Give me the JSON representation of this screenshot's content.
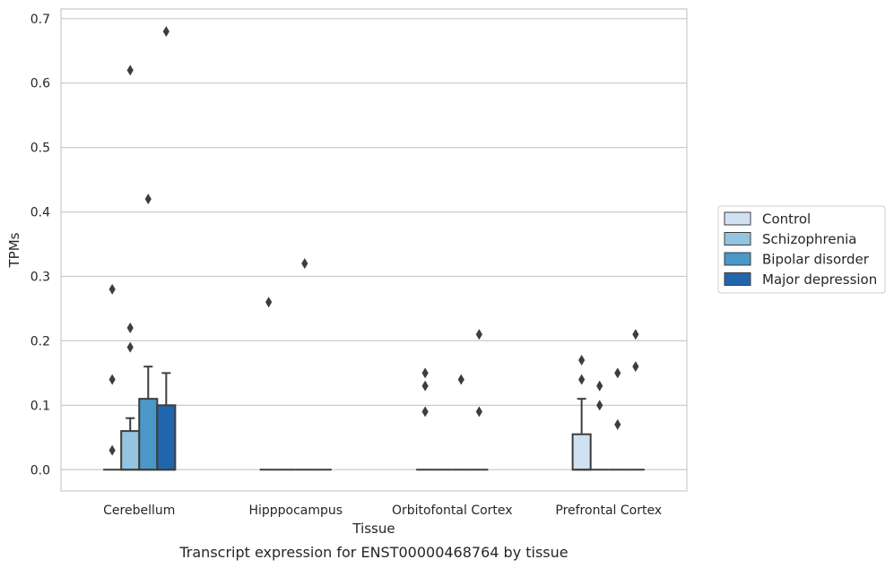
{
  "chart_data": {
    "type": "box",
    "title": "",
    "caption": "Transcript expression for ENST00000468764 by tissue",
    "xlabel": "Tissue",
    "ylabel": "TPMs",
    "ylim": [
      -0.033,
      0.715
    ],
    "yticks": [
      "0.0",
      "0.1",
      "0.2",
      "0.3",
      "0.4",
      "0.5",
      "0.6",
      "0.7"
    ],
    "grid": "horizontal",
    "legend_position": "right",
    "categories": [
      "Cerebellum",
      "Hipppocampus",
      "Orbitofontal Cortex",
      "Prefrontal Cortex"
    ],
    "series": [
      {
        "name": "Control",
        "color": "#d0e1f2",
        "boxes": [
          {
            "q1": 0,
            "median": 0,
            "q3": 0,
            "whisker_low": 0,
            "whisker_high": 0,
            "outliers": [
              0.03,
              0.14,
              0.28
            ]
          },
          {
            "q1": 0,
            "median": 0,
            "q3": 0,
            "whisker_low": 0,
            "whisker_high": 0,
            "outliers": [
              0.26
            ]
          },
          {
            "q1": 0,
            "median": 0,
            "q3": 0,
            "whisker_low": 0,
            "whisker_high": 0,
            "outliers": [
              0.09,
              0.13,
              0.15
            ]
          },
          {
            "q1": 0,
            "median": 0,
            "q3": 0.055,
            "whisker_low": 0,
            "whisker_high": 0.11,
            "outliers": [
              0.14,
              0.17
            ]
          }
        ]
      },
      {
        "name": "Schizophrenia",
        "color": "#94c4df",
        "boxes": [
          {
            "q1": 0,
            "median": 0,
            "q3": 0.06,
            "whisker_low": 0,
            "whisker_high": 0.08,
            "outliers": [
              0.19,
              0.22,
              0.62
            ]
          },
          {
            "q1": 0,
            "median": 0,
            "q3": 0,
            "whisker_low": 0,
            "whisker_high": 0,
            "outliers": []
          },
          {
            "q1": 0,
            "median": 0,
            "q3": 0,
            "whisker_low": 0,
            "whisker_high": 0,
            "outliers": []
          },
          {
            "q1": 0,
            "median": 0,
            "q3": 0,
            "whisker_low": 0,
            "whisker_high": 0,
            "outliers": [
              0.1,
              0.13
            ]
          }
        ]
      },
      {
        "name": "Bipolar disorder",
        "color": "#4a98c9",
        "boxes": [
          {
            "q1": 0,
            "median": 0,
            "q3": 0.11,
            "whisker_low": 0,
            "whisker_high": 0.16,
            "outliers": [
              0.42
            ]
          },
          {
            "q1": 0,
            "median": 0,
            "q3": 0,
            "whisker_low": 0,
            "whisker_high": 0,
            "outliers": [
              0.32
            ]
          },
          {
            "q1": 0,
            "median": 0,
            "q3": 0,
            "whisker_low": 0,
            "whisker_high": 0,
            "outliers": [
              0.14
            ]
          },
          {
            "q1": 0,
            "median": 0,
            "q3": 0,
            "whisker_low": 0,
            "whisker_high": 0,
            "outliers": [
              0.07,
              0.15
            ]
          }
        ]
      },
      {
        "name": "Major depression",
        "color": "#2166ac",
        "boxes": [
          {
            "q1": 0,
            "median": 0,
            "q3": 0.1,
            "whisker_low": 0,
            "whisker_high": 0.15,
            "outliers": [
              0.68
            ]
          },
          {
            "q1": 0,
            "median": 0,
            "q3": 0,
            "whisker_low": 0,
            "whisker_high": 0,
            "outliers": []
          },
          {
            "q1": 0,
            "median": 0,
            "q3": 0,
            "whisker_low": 0,
            "whisker_high": 0,
            "outliers": [
              0.09,
              0.21
            ]
          },
          {
            "q1": 0,
            "median": 0,
            "q3": 0,
            "whisker_low": 0,
            "whisker_high": 0,
            "outliers": [
              0.16,
              0.21
            ]
          }
        ]
      }
    ]
  }
}
